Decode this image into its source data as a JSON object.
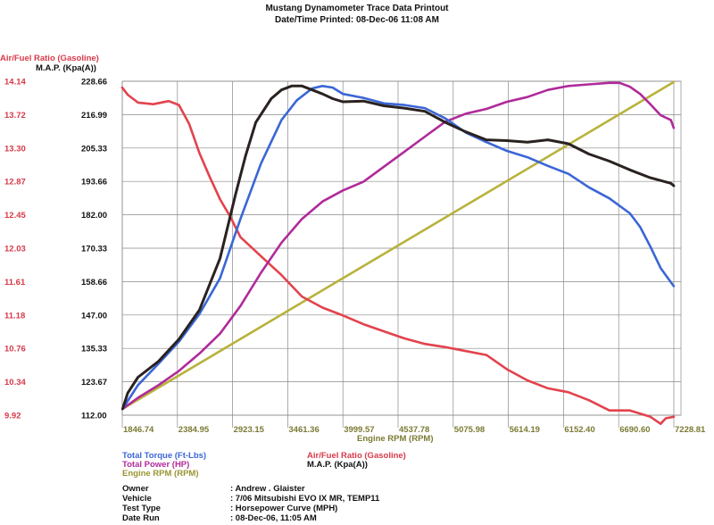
{
  "header": {
    "title": "Mustang Dynamometer Trace Data Printout",
    "printed": "Date/Time Printed: 08-Dec-06 11:08 AM"
  },
  "chart_data": {
    "type": "line",
    "xlabel": "Engine RPM (RPM)",
    "x_ticks": [
      "1846.74",
      "2384.95",
      "2923.15",
      "3461.36",
      "3999.57",
      "4537.78",
      "5075.98",
      "5614.19",
      "6152.40",
      "6690.60",
      "7228.81"
    ],
    "x_range": [
      1846.74,
      7228.81
    ],
    "left_axis": {
      "label": "Air/Fuel Ratio (Gasoline)",
      "ticks": [
        "14.14",
        "13.72",
        "13.30",
        "12.87",
        "12.45",
        "12.03",
        "11.61",
        "11.18",
        "10.76",
        "10.34",
        "9.92"
      ],
      "range": [
        9.92,
        14.14
      ]
    },
    "right_axis": {
      "label": "M.A.P. (Kpa(A))",
      "ticks": [
        "228.66",
        "216.99",
        "205.33",
        "193.66",
        "182.00",
        "170.33",
        "158.66",
        "147.00",
        "135.33",
        "123.67",
        "112.00"
      ],
      "range": [
        112.0,
        228.66
      ]
    },
    "series": [
      {
        "name": "Total Torque (Ft-Lbs)",
        "color": "#3a66d6",
        "x": [
          1850,
          1900,
          2000,
          2200,
          2400,
          2600,
          2800,
          3000,
          3200,
          3400,
          3550,
          3700,
          3800,
          3900,
          4000,
          4200,
          4400,
          4600,
          4800,
          5000,
          5200,
          5400,
          5600,
          5800,
          6000,
          6200,
          6400,
          6600,
          6800,
          6900,
          7000,
          7100,
          7200,
          7228
        ],
        "y": [
          10.0,
          10.1,
          10.3,
          10.57,
          10.85,
          11.2,
          11.65,
          12.4,
          13.1,
          13.65,
          13.9,
          14.05,
          14.08,
          14.06,
          13.98,
          13.93,
          13.86,
          13.84,
          13.8,
          13.67,
          13.49,
          13.37,
          13.26,
          13.18,
          13.07,
          12.97,
          12.8,
          12.66,
          12.47,
          12.3,
          12.05,
          11.78,
          11.6,
          11.55
        ]
      },
      {
        "name": "Total Power (HP)",
        "color": "#b02a9a",
        "x": [
          1850,
          2000,
          2200,
          2400,
          2600,
          2800,
          3000,
          3200,
          3400,
          3600,
          3800,
          4000,
          4200,
          4400,
          4600,
          4800,
          5000,
          5200,
          5400,
          5600,
          5800,
          6000,
          6200,
          6400,
          6600,
          6700,
          6800,
          6900,
          7000,
          7100,
          7200,
          7228
        ],
        "y": [
          10.0,
          10.14,
          10.3,
          10.48,
          10.7,
          10.95,
          11.3,
          11.72,
          12.1,
          12.4,
          12.62,
          12.76,
          12.87,
          13.06,
          13.25,
          13.44,
          13.63,
          13.73,
          13.79,
          13.88,
          13.94,
          14.03,
          14.08,
          14.1,
          14.12,
          14.12,
          14.07,
          13.98,
          13.85,
          13.71,
          13.65,
          13.55
        ]
      },
      {
        "name": "Engine RPM (RPM)",
        "color": "#b8b23c",
        "x": [
          1850,
          7228
        ],
        "y": [
          10.0,
          14.13
        ]
      },
      {
        "name": "Air/Fuel Ratio (Gasoline)",
        "color": "#e2434d",
        "x": [
          1846,
          1900,
          2000,
          2150,
          2300,
          2400,
          2500,
          2600,
          2700,
          2800,
          2900,
          3000,
          3200,
          3400,
          3600,
          3800,
          4000,
          4200,
          4400,
          4600,
          4800,
          5000,
          5200,
          5400,
          5600,
          5800,
          6000,
          6200,
          6400,
          6600,
          6800,
          7000,
          7100,
          7150,
          7228
        ],
        "y": [
          14.06,
          13.97,
          13.87,
          13.85,
          13.89,
          13.84,
          13.6,
          13.23,
          12.93,
          12.65,
          12.43,
          12.17,
          11.93,
          11.69,
          11.42,
          11.28,
          11.18,
          11.07,
          10.98,
          10.89,
          10.82,
          10.78,
          10.73,
          10.68,
          10.5,
          10.36,
          10.26,
          10.21,
          10.11,
          9.98,
          9.98,
          9.9,
          9.81,
          9.88,
          9.9
        ]
      },
      {
        "name": "M.A.P. (Kpa(A))",
        "color": "#2a2220",
        "x": [
          1850,
          1900,
          2000,
          2200,
          2400,
          2600,
          2800,
          2950,
          3050,
          3150,
          3300,
          3400,
          3500,
          3600,
          3700,
          3800,
          3900,
          4000,
          4200,
          4400,
          4600,
          4800,
          5000,
          5200,
          5400,
          5600,
          5800,
          6000,
          6200,
          6400,
          6600,
          6800,
          7000,
          7200,
          7228
        ],
        "y": [
          10.0,
          10.2,
          10.4,
          10.6,
          10.88,
          11.25,
          11.9,
          12.7,
          13.2,
          13.62,
          13.92,
          14.03,
          14.08,
          14.08,
          14.03,
          13.98,
          13.92,
          13.88,
          13.89,
          13.83,
          13.8,
          13.76,
          13.62,
          13.5,
          13.4,
          13.39,
          13.37,
          13.4,
          13.35,
          13.22,
          13.13,
          13.02,
          12.92,
          12.85,
          12.82
        ]
      }
    ],
    "legend": [
      "Total Torque (Ft-Lbs)",
      "Total Power (HP)",
      "Engine RPM (RPM)",
      "Air/Fuel Ratio (Gasoline)",
      "M.A.P. (Kpa(A))"
    ]
  },
  "run_info": [
    {
      "label": "Owner",
      "value": ": Andrew . Glaister"
    },
    {
      "label": "Vehicle",
      "value": ": 7/06 Mitsubishi EVO IX MR, TEMP11"
    },
    {
      "label": "Test Type",
      "value": ": Horsepower Curve (MPH)"
    },
    {
      "label": "Date Run",
      "value": ": 08-Dec-06, 11:05 AM"
    }
  ],
  "colors": {
    "torque": "#3a66d6",
    "power": "#b02a9a",
    "rpm": "#b8b23c",
    "afr": "#e2434d",
    "map": "#2a2220",
    "afr_label": "#d73a4a",
    "grid": "#8a8a8a"
  }
}
